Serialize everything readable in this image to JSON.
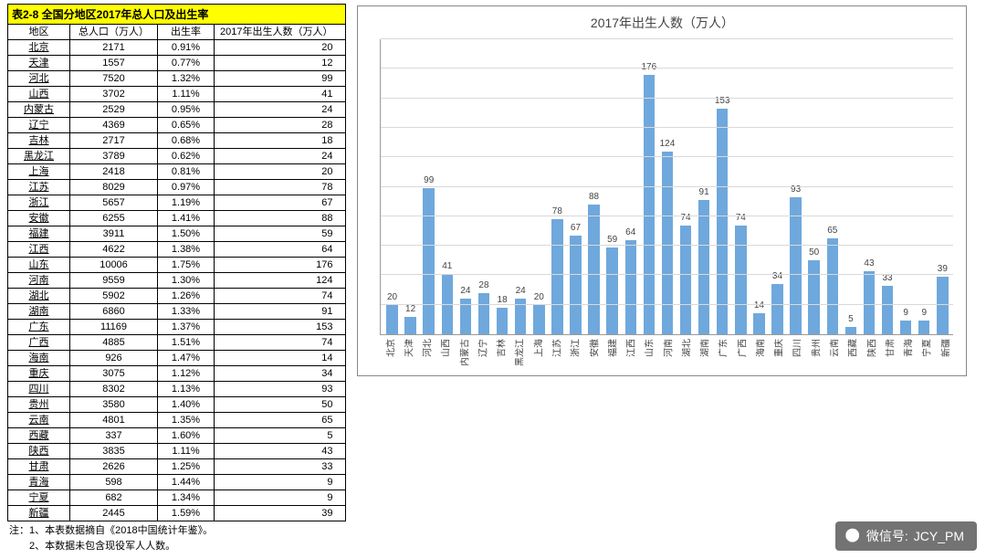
{
  "table": {
    "title": "表2-8 全国分地区2017年总人口及出生率",
    "columns": [
      "地区",
      "总人口（万人）",
      "出生率",
      "2017年出生人数（万人）"
    ],
    "rows": [
      [
        "北京",
        2171,
        "0.91%",
        20
      ],
      [
        "天津",
        1557,
        "0.77%",
        12
      ],
      [
        "河北",
        7520,
        "1.32%",
        99
      ],
      [
        "山西",
        3702,
        "1.11%",
        41
      ],
      [
        "内蒙古",
        2529,
        "0.95%",
        24
      ],
      [
        "辽宁",
        4369,
        "0.65%",
        28
      ],
      [
        "吉林",
        2717,
        "0.68%",
        18
      ],
      [
        "黑龙江",
        3789,
        "0.62%",
        24
      ],
      [
        "上海",
        2418,
        "0.81%",
        20
      ],
      [
        "江苏",
        8029,
        "0.97%",
        78
      ],
      [
        "浙江",
        5657,
        "1.19%",
        67
      ],
      [
        "安徽",
        6255,
        "1.41%",
        88
      ],
      [
        "福建",
        3911,
        "1.50%",
        59
      ],
      [
        "江西",
        4622,
        "1.38%",
        64
      ],
      [
        "山东",
        10006,
        "1.75%",
        176
      ],
      [
        "河南",
        9559,
        "1.30%",
        124
      ],
      [
        "湖北",
        5902,
        "1.26%",
        74
      ],
      [
        "湖南",
        6860,
        "1.33%",
        91
      ],
      [
        "广东",
        11169,
        "1.37%",
        153
      ],
      [
        "广西",
        4885,
        "1.51%",
        74
      ],
      [
        "海南",
        926,
        "1.47%",
        14
      ],
      [
        "重庆",
        3075,
        "1.12%",
        34
      ],
      [
        "四川",
        8302,
        "1.13%",
        93
      ],
      [
        "贵州",
        3580,
        "1.40%",
        50
      ],
      [
        "云南",
        4801,
        "1.35%",
        65
      ],
      [
        "西藏",
        337,
        "1.60%",
        5
      ],
      [
        "陕西",
        3835,
        "1.11%",
        43
      ],
      [
        "甘肃",
        2626,
        "1.25%",
        33
      ],
      [
        "青海",
        598,
        "1.44%",
        9
      ],
      [
        "宁夏",
        682,
        "1.34%",
        9
      ],
      [
        "新疆",
        2445,
        "1.59%",
        39
      ]
    ],
    "notes": [
      "注：1、本表数据摘自《2018中国统计年鉴》。",
      "　　2、本数据未包含现役军人人数。"
    ]
  },
  "chart": {
    "type": "bar",
    "title": "2017年出生人数（万人）",
    "bar_color": "#6FA8DC",
    "grid_color": "#d9d9d9",
    "axis_color": "#9a9a9a",
    "background_color": "#ffffff",
    "label_fontsize": 10,
    "title_fontsize": 14,
    "ylim": [
      0,
      200
    ],
    "grid_steps": 10,
    "categories": [
      "北京",
      "天津",
      "河北",
      "山西",
      "内蒙古",
      "辽宁",
      "吉林",
      "黑龙江",
      "上海",
      "江苏",
      "浙江",
      "安徽",
      "福建",
      "江西",
      "山东",
      "河南",
      "湖北",
      "湖南",
      "广东",
      "广西",
      "海南",
      "重庆",
      "四川",
      "贵州",
      "云南",
      "西藏",
      "陕西",
      "甘肃",
      "青海",
      "宁夏",
      "新疆"
    ],
    "values": [
      20,
      12,
      99,
      41,
      24,
      28,
      18,
      24,
      20,
      78,
      67,
      88,
      59,
      64,
      176,
      124,
      74,
      91,
      153,
      74,
      14,
      34,
      93,
      50,
      65,
      5,
      43,
      33,
      9,
      9,
      39
    ]
  },
  "watermark": {
    "label": "微信号:",
    "id": "JCY_PM"
  }
}
